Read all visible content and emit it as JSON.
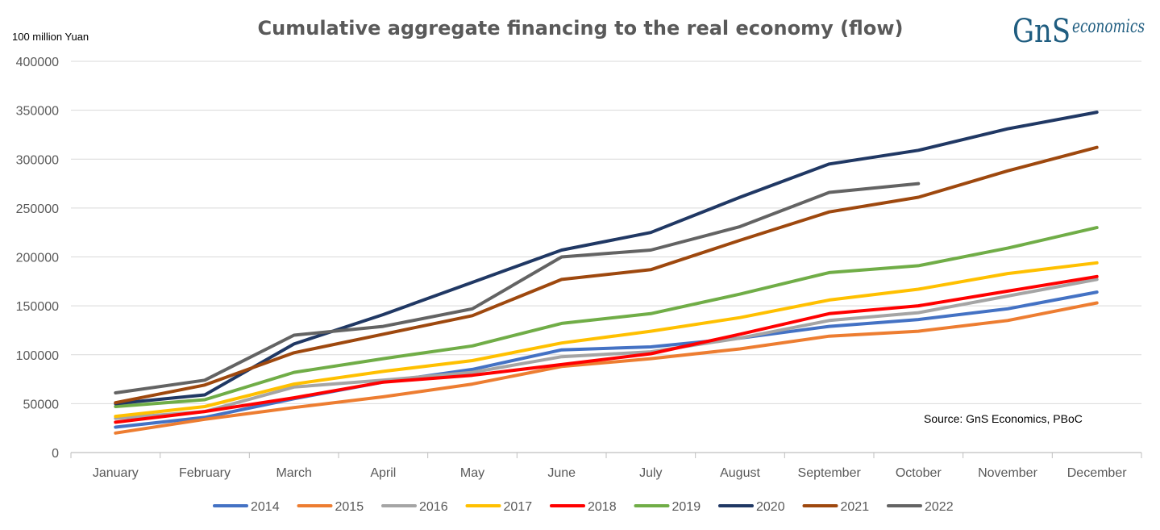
{
  "logo": {
    "brand": "GnS",
    "suffix": "economics"
  },
  "chart_data": {
    "type": "line",
    "title": "Cumulative aggregate financing to the real economy (flow)",
    "ylabel": "100 million Yuan",
    "xlabel": "",
    "source": "Source: GnS Economics, PBoC",
    "ylim": [
      0,
      400000
    ],
    "yticks": [
      0,
      50000,
      100000,
      150000,
      200000,
      250000,
      300000,
      350000,
      400000
    ],
    "ytick_labels": [
      "0",
      "50000",
      "100000",
      "150000",
      "200000",
      "250000",
      "300000",
      "350000",
      "400000"
    ],
    "grid": true,
    "legend_position": "bottom",
    "categories": [
      "January",
      "February",
      "March",
      "April",
      "May",
      "June",
      "July",
      "August",
      "September",
      "October",
      "November",
      "December"
    ],
    "series": [
      {
        "name": "2014",
        "color": "#4472c4",
        "values": [
          26000,
          36000,
          55000,
          72000,
          85000,
          105000,
          108000,
          117000,
          129000,
          136000,
          147000,
          164000
        ]
      },
      {
        "name": "2015",
        "color": "#ed7d31",
        "values": [
          20000,
          34000,
          46000,
          57000,
          70000,
          88000,
          96000,
          106000,
          119000,
          124000,
          135000,
          153000
        ]
      },
      {
        "name": "2016",
        "color": "#a5a5a5",
        "values": [
          35000,
          42000,
          67000,
          74000,
          82000,
          98000,
          103000,
          117000,
          135000,
          143000,
          160000,
          177000
        ]
      },
      {
        "name": "2017",
        "color": "#ffc000",
        "values": [
          37000,
          47000,
          70000,
          83000,
          94000,
          112000,
          124000,
          138000,
          156000,
          167000,
          183000,
          194000
        ]
      },
      {
        "name": "2018",
        "color": "#ff0000",
        "values": [
          31000,
          42000,
          56000,
          72000,
          79000,
          90000,
          101000,
          121000,
          142000,
          150000,
          165000,
          180000
        ]
      },
      {
        "name": "2019",
        "color": "#70ad47",
        "values": [
          47000,
          54000,
          82000,
          96000,
          109000,
          132000,
          142000,
          162000,
          184000,
          191000,
          209000,
          230000
        ]
      },
      {
        "name": "2020",
        "color": "#203864",
        "values": [
          50000,
          59000,
          111000,
          141000,
          174000,
          207000,
          225000,
          261000,
          295000,
          309000,
          331000,
          348000
        ]
      },
      {
        "name": "2021",
        "color": "#9e480e",
        "values": [
          51000,
          69000,
          102000,
          121000,
          140000,
          177000,
          187000,
          217000,
          246000,
          261000,
          288000,
          312000
        ]
      },
      {
        "name": "2022",
        "color": "#636363",
        "values": [
          61000,
          74000,
          120000,
          129000,
          147000,
          200000,
          207000,
          231000,
          266000,
          275000,
          null,
          null
        ]
      }
    ]
  }
}
